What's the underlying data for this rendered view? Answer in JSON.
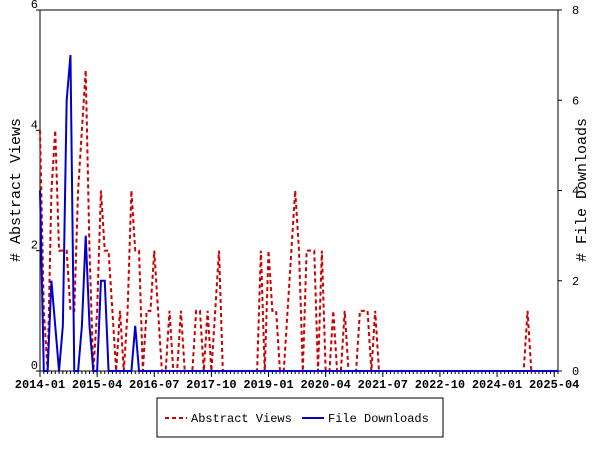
{
  "chart_data": {
    "type": "line",
    "x": [
      "2014-01",
      "2014-02",
      "2014-03",
      "2014-04",
      "2014-05",
      "2014-06",
      "2014-07",
      "2014-08",
      "2014-09",
      "2014-10",
      "2014-11",
      "2014-12",
      "2015-01",
      "2015-02",
      "2015-03",
      "2015-04",
      "2015-05",
      "2015-06",
      "2015-07",
      "2015-08",
      "2015-09",
      "2015-10",
      "2015-11",
      "2015-12",
      "2016-01",
      "2016-02",
      "2016-03",
      "2016-04",
      "2016-05",
      "2016-06",
      "2016-07",
      "2016-08",
      "2016-09",
      "2016-10",
      "2016-11",
      "2016-12",
      "2017-01",
      "2017-02",
      "2017-03",
      "2017-04",
      "2017-05",
      "2017-06",
      "2017-07",
      "2017-08",
      "2017-09",
      "2017-10",
      "2017-11",
      "2017-12",
      "2018-01",
      "2018-02",
      "2018-03",
      "2018-04",
      "2018-05",
      "2018-06",
      "2018-07",
      "2018-08",
      "2018-09",
      "2018-10",
      "2018-11",
      "2018-12",
      "2019-01",
      "2019-02",
      "2019-03",
      "2019-04",
      "2019-05",
      "2019-06",
      "2019-07",
      "2019-08",
      "2019-09",
      "2019-10",
      "2019-11",
      "2019-12",
      "2020-01",
      "2020-02",
      "2020-03",
      "2020-04",
      "2020-05",
      "2020-06",
      "2020-07",
      "2020-08",
      "2020-09",
      "2020-10",
      "2020-11",
      "2020-12",
      "2021-01",
      "2021-02",
      "2021-03",
      "2021-04",
      "2021-05",
      "2021-06",
      "2021-07",
      "2021-08",
      "2021-09",
      "2021-10",
      "2021-11",
      "2021-12",
      "2022-01",
      "2022-02",
      "2022-03",
      "2022-04",
      "2022-05",
      "2022-06",
      "2022-07",
      "2022-08",
      "2022-09",
      "2022-10",
      "2022-11",
      "2022-12",
      "2023-01",
      "2023-02",
      "2023-03",
      "2023-04",
      "2023-05",
      "2023-06",
      "2023-07",
      "2023-08",
      "2023-09",
      "2023-10",
      "2023-11",
      "2023-12",
      "2024-01",
      "2024-02",
      "2024-03",
      "2024-04",
      "2024-05",
      "2024-06",
      "2024-07",
      "2024-08",
      "2024-09",
      "2024-10",
      "2024-11",
      "2024-12",
      "2025-01",
      "2025-02",
      "2025-03",
      "2025-04",
      "2025-05"
    ],
    "xticks": [
      "2014-01",
      "2015-04",
      "2016-07",
      "2017-10",
      "2019-01",
      "2020-04",
      "2021-07",
      "2022-10",
      "2024-01",
      "2025-04"
    ],
    "ylabel": "# Abstract Views",
    "y2label": "# File Downloads",
    "ylim": [
      0,
      6
    ],
    "yticks": [
      0,
      2,
      4,
      6
    ],
    "y2lim": [
      0,
      8
    ],
    "y2ticks": [
      0,
      2,
      4,
      6,
      8
    ],
    "series": [
      {
        "name": "Abstract Views",
        "color": "#cc0000",
        "dashed": true,
        "axis": "y",
        "values": [
          4,
          1,
          0,
          3,
          4,
          2,
          2,
          2,
          1,
          1,
          3,
          4,
          5,
          2,
          0,
          1,
          3,
          2,
          2,
          1,
          0,
          1,
          0,
          1,
          3,
          2,
          2,
          0,
          1,
          1,
          2,
          1,
          0,
          0,
          1,
          0,
          0,
          1,
          0,
          0,
          0,
          1,
          1,
          0,
          1,
          0,
          1,
          2,
          0,
          0,
          0,
          0,
          0,
          0,
          0,
          0,
          0,
          0,
          2,
          0,
          2,
          1,
          1,
          0,
          0,
          1,
          2,
          3,
          2,
          0,
          2,
          2,
          2,
          0,
          2,
          0,
          0,
          1,
          0,
          0,
          1,
          0,
          0,
          0,
          1,
          1,
          1,
          0,
          1,
          0,
          0,
          0,
          0,
          0,
          0,
          0,
          0,
          0,
          0,
          0,
          0,
          0,
          0,
          0,
          0,
          0,
          0,
          0,
          0,
          0,
          0,
          0,
          0,
          0,
          0,
          0,
          0,
          0,
          0,
          0,
          0,
          0,
          0,
          0,
          0,
          0,
          0,
          0,
          1,
          0,
          0,
          0,
          0,
          0,
          0,
          0,
          0
        ]
      },
      {
        "name": "File Downloads",
        "color": "#0000cc",
        "dashed": false,
        "axis": "y2",
        "values": [
          4,
          0,
          0,
          2,
          1,
          0,
          1,
          6,
          7,
          0,
          0,
          1,
          3,
          1,
          0,
          0,
          2,
          2,
          0,
          0,
          0,
          0,
          0,
          0,
          0,
          1,
          0,
          0,
          0,
          0,
          0,
          0,
          0,
          0,
          0,
          0,
          0,
          0,
          0,
          0,
          0,
          0,
          0,
          0,
          0,
          0,
          0,
          0,
          0,
          0,
          0,
          0,
          0,
          0,
          0,
          0,
          0,
          0,
          0,
          0,
          0,
          0,
          0,
          0,
          0,
          0,
          0,
          0,
          0,
          0,
          0,
          0,
          0,
          0,
          0,
          0,
          0,
          0,
          0,
          0,
          0,
          0,
          0,
          0,
          0,
          0,
          0,
          0,
          0,
          0,
          0,
          0,
          0,
          0,
          0,
          0,
          0,
          0,
          0,
          0,
          0,
          0,
          0,
          0,
          0,
          0,
          0,
          0,
          0,
          0,
          0,
          0,
          0,
          0,
          0,
          0,
          0,
          0,
          0,
          0,
          0,
          0,
          0,
          0,
          0,
          0,
          0,
          0,
          0,
          0,
          0,
          0,
          0,
          0,
          0,
          0,
          0
        ]
      }
    ]
  }
}
